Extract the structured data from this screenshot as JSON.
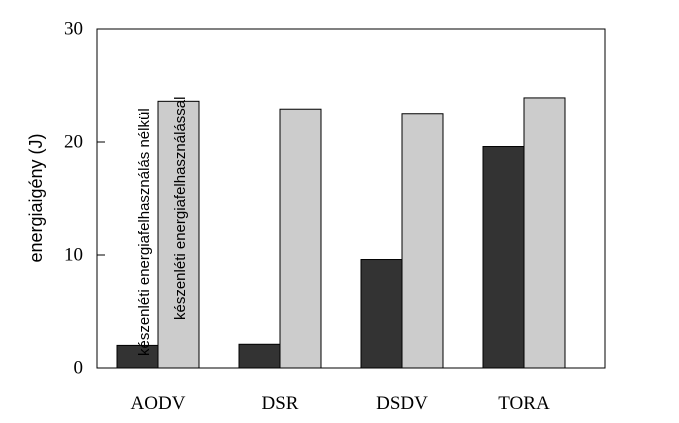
{
  "chart_data": {
    "type": "bar",
    "categories": [
      "AODV",
      "DSR",
      "DSDV",
      "TORA"
    ],
    "series": [
      {
        "name": "készenléti energiafelhasználás nélkül",
        "color": "#333333",
        "values": [
          2.0,
          2.1,
          9.6,
          19.6
        ]
      },
      {
        "name": "készenléti energiafelhasználással",
        "color": "#cccccc",
        "values": [
          23.6,
          22.9,
          22.5,
          23.9
        ]
      }
    ],
    "title": "",
    "xlabel": "",
    "ylabel": "energiaigény (J)",
    "ylim": [
      0,
      30
    ],
    "yticks": [
      "0",
      "10",
      "20",
      "30"
    ],
    "grid": false,
    "legend": "series names written vertically inside the first category group"
  }
}
